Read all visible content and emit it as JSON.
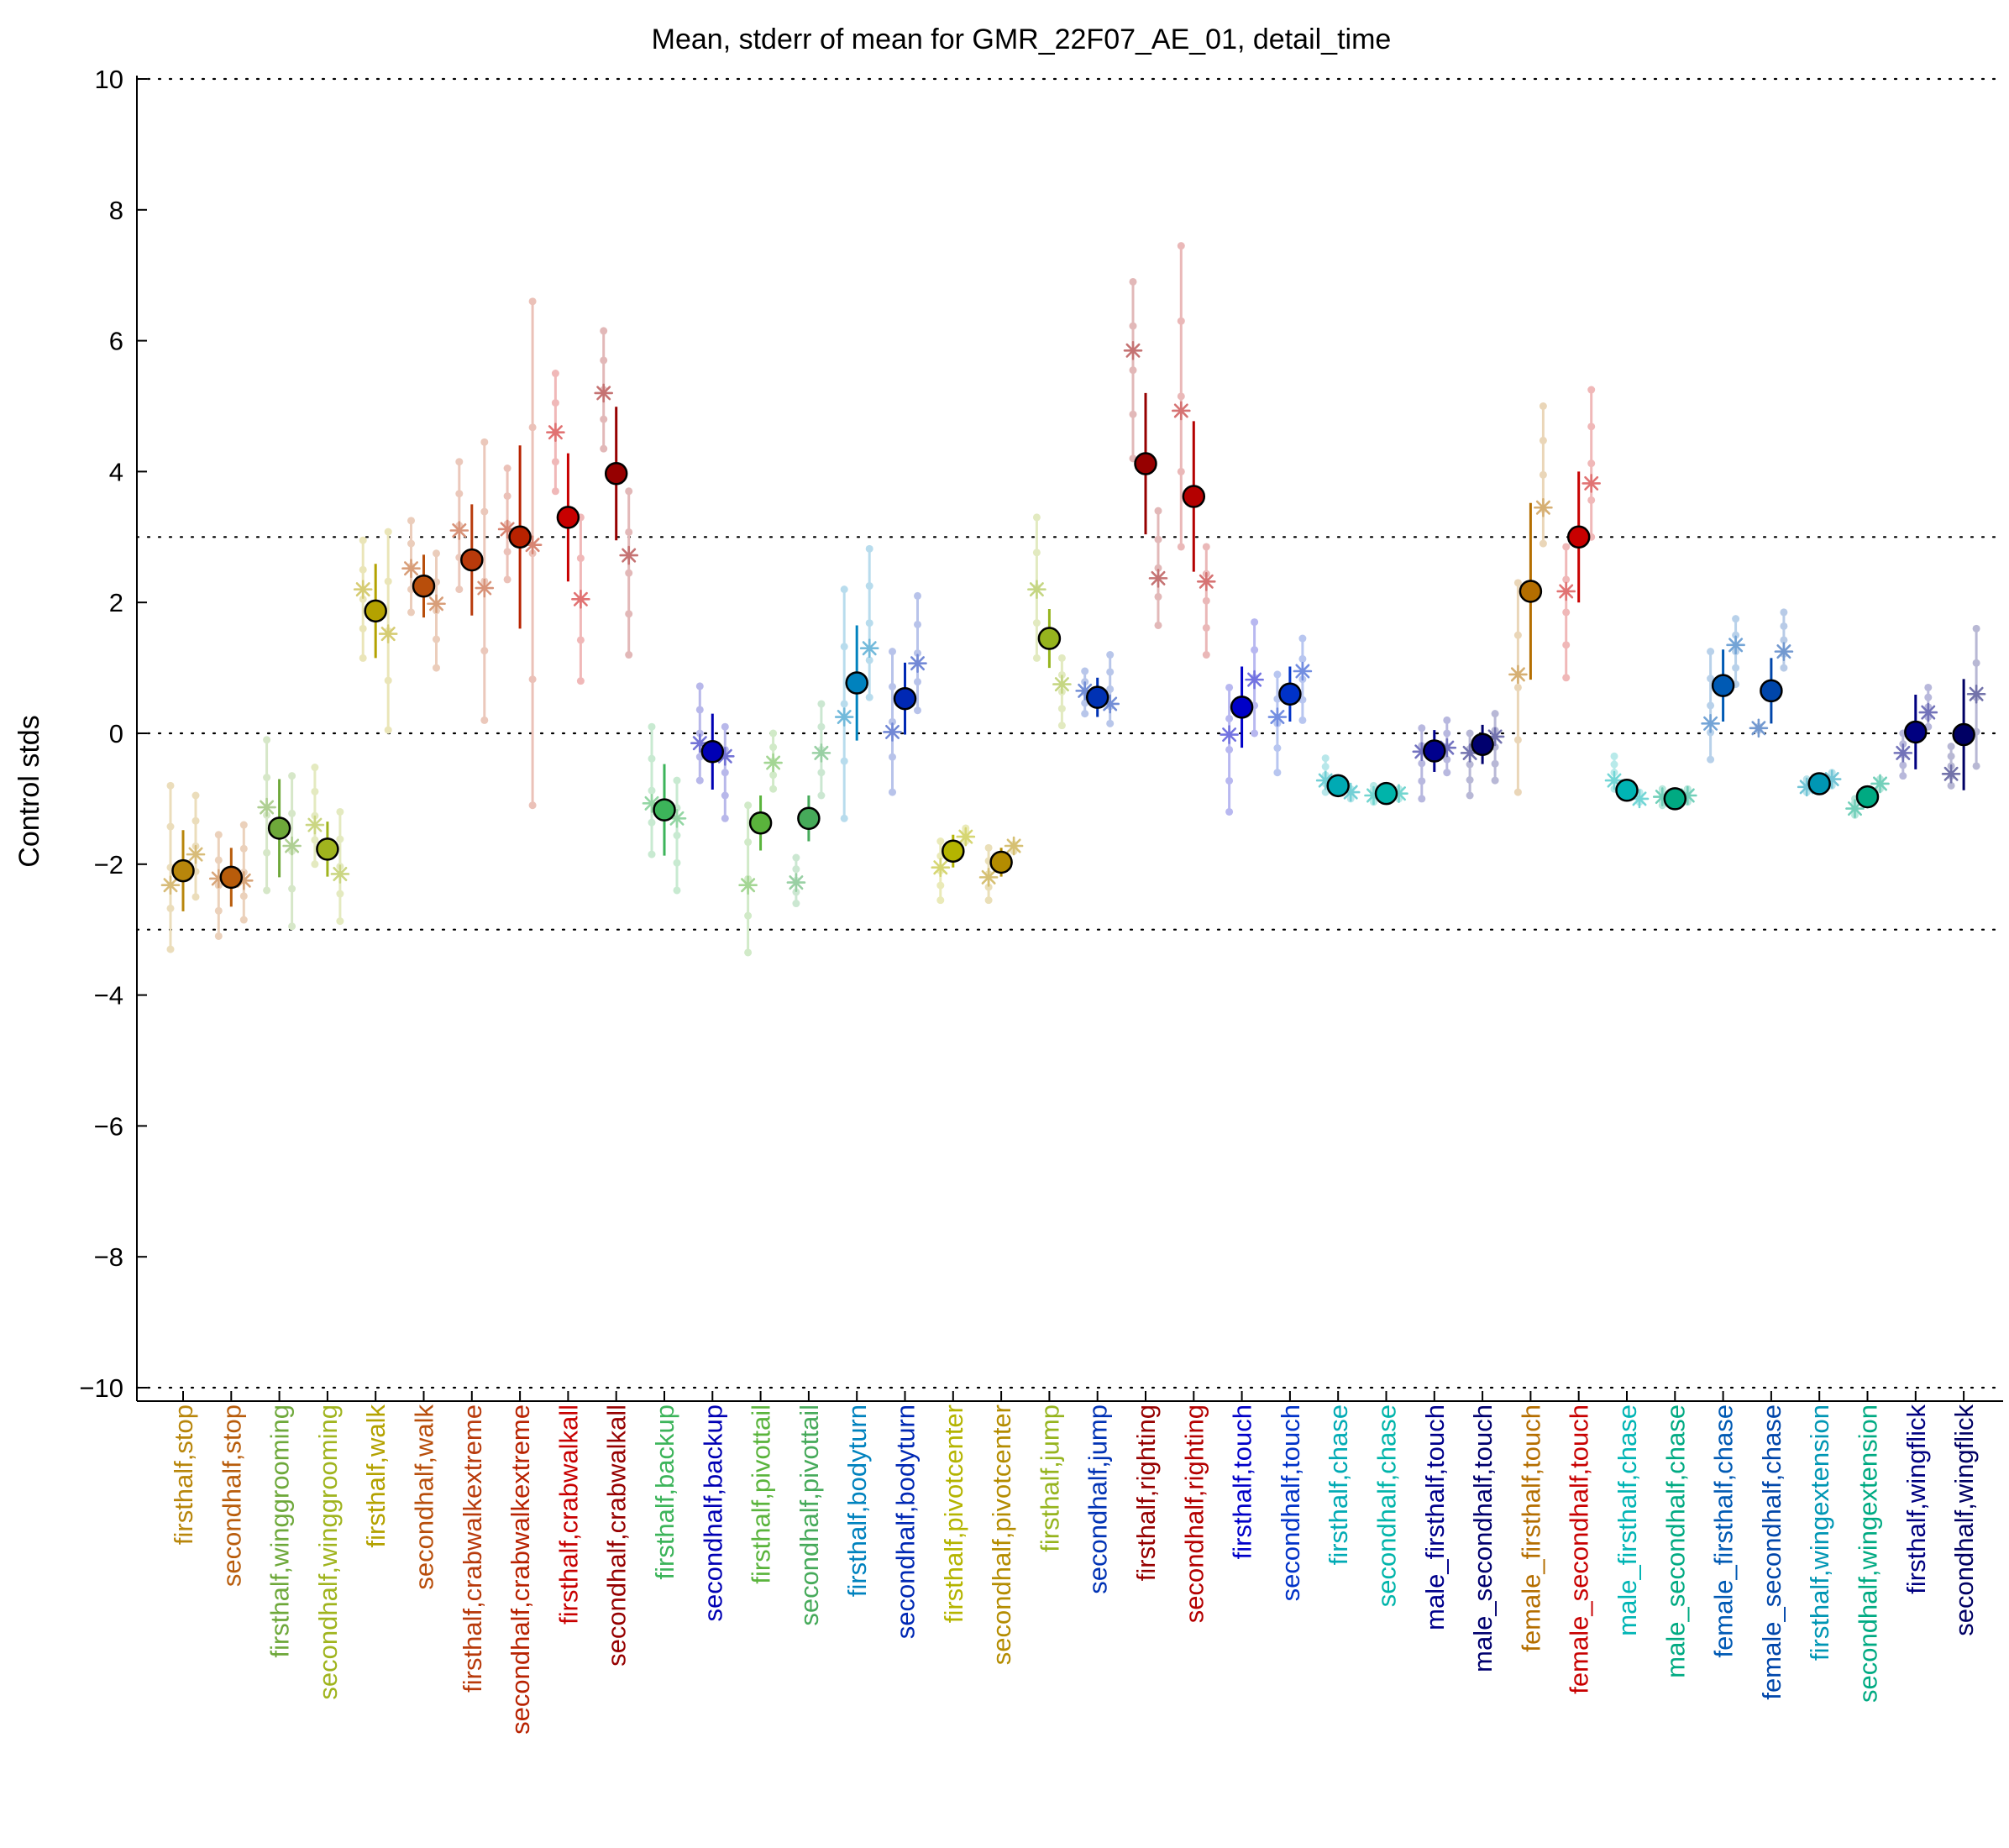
{
  "chart_data": {
    "type": "scatter",
    "title": "Mean, stderr of mean for GMR_22F07_AE_01, detail_time",
    "xlabel": "",
    "ylabel": "Control stds",
    "ylim": [
      -10,
      10
    ],
    "yticks": [
      "10",
      "8",
      "6",
      "4",
      "2",
      "0",
      "−2",
      "−4",
      "−6",
      "−8",
      "−10"
    ],
    "reference_lines": [
      10,
      3,
      0,
      -3,
      -10
    ],
    "grid": false,
    "legend": "none",
    "categories": [
      {
        "label": "firsthalf,stop",
        "color": "#b8860b",
        "mean": -2.1,
        "err": 0.62,
        "markers": [
          -2.32,
          -1.85
        ],
        "dots": [
          [
            -0.8,
            -3.3
          ],
          [
            -0.95,
            -2.5
          ]
        ]
      },
      {
        "label": "secondhalf,stop",
        "color": "#b85c0b",
        "mean": -2.2,
        "err": 0.45,
        "markers": [
          -2.22,
          -2.25
        ],
        "dots": [
          [
            -1.55,
            -3.1
          ],
          [
            -1.4,
            -2.85
          ]
        ]
      },
      {
        "label": "firsthalf,winggrooming",
        "color": "#6ea83a",
        "mean": -1.45,
        "err": 0.75,
        "markers": [
          -1.13,
          -1.72
        ],
        "dots": [
          [
            -0.1,
            -2.4
          ],
          [
            -0.65,
            -2.95
          ]
        ]
      },
      {
        "label": "secondhalf,winggrooming",
        "color": "#a0b41e",
        "mean": -1.77,
        "err": 0.42,
        "markers": [
          -1.4,
          -2.15
        ],
        "dots": [
          [
            -0.52,
            -2.0
          ],
          [
            -1.2,
            -2.87
          ]
        ]
      },
      {
        "label": "firsthalf,walk",
        "color": "#b4a200",
        "mean": 1.87,
        "err": 0.72,
        "markers": [
          2.2,
          1.52
        ],
        "dots": [
          [
            2.95,
            1.15
          ],
          [
            3.08,
            0.05
          ]
        ]
      },
      {
        "label": "secondhalf,walk",
        "color": "#b84e0b",
        "mean": 2.25,
        "err": 0.48,
        "markers": [
          2.52,
          1.98
        ],
        "dots": [
          [
            3.25,
            1.85
          ],
          [
            2.75,
            1.0
          ]
        ]
      },
      {
        "label": "firsthalf,crabwalkextreme",
        "color": "#b83a0b",
        "mean": 2.65,
        "err": 0.85,
        "markers": [
          3.1,
          2.22
        ],
        "dots": [
          [
            4.15,
            2.2
          ],
          [
            4.45,
            0.2
          ]
        ]
      },
      {
        "label": "secondhalf,crabwalkextreme",
        "color": "#b82200",
        "mean": 3.0,
        "err": 1.4,
        "markers": [
          3.12,
          2.88
        ],
        "dots": [
          [
            4.05,
            2.35
          ],
          [
            6.6,
            -1.1
          ]
        ]
      },
      {
        "label": "firsthalf,crabwalkall",
        "color": "#c80000",
        "mean": 3.3,
        "err": 0.98,
        "markers": [
          4.6,
          2.05
        ],
        "dots": [
          [
            5.5,
            3.7
          ],
          [
            3.3,
            0.8
          ]
        ]
      },
      {
        "label": "secondhalf,crabwalkall",
        "color": "#960000",
        "mean": 3.97,
        "err": 1.02,
        "markers": [
          5.2,
          2.72
        ],
        "dots": [
          [
            6.15,
            4.35
          ],
          [
            3.7,
            1.2
          ]
        ]
      },
      {
        "label": "firsthalf,backup",
        "color": "#3cb45a",
        "mean": -1.17,
        "err": 0.7,
        "markers": [
          -1.07,
          -1.3
        ],
        "dots": [
          [
            0.1,
            -1.85
          ],
          [
            -0.72,
            -2.4
          ]
        ]
      },
      {
        "label": "secondhalf,backup",
        "color": "#0000b4",
        "mean": -0.28,
        "err": 0.58,
        "markers": [
          -0.15,
          -0.35
        ],
        "dots": [
          [
            0.72,
            -0.72
          ],
          [
            0.1,
            -1.3
          ]
        ]
      },
      {
        "label": "firsthalf,pivottail",
        "color": "#5ab43c",
        "mean": -1.37,
        "err": 0.42,
        "markers": [
          -2.32,
          -0.45
        ],
        "dots": [
          [
            -1.1,
            -3.35
          ],
          [
            0.0,
            -0.85
          ]
        ]
      },
      {
        "label": "secondhalf,pivottail",
        "color": "#46aa5a",
        "mean": -1.3,
        "err": 0.35,
        "markers": [
          -2.28,
          -0.3
        ],
        "dots": [
          [
            -1.9,
            -2.6
          ],
          [
            0.45,
            -0.95
          ]
        ]
      },
      {
        "label": "firsthalf,bodyturn",
        "color": "#0082be",
        "mean": 0.77,
        "err": 0.88,
        "markers": [
          0.25,
          1.3
        ],
        "dots": [
          [
            2.2,
            -1.3
          ],
          [
            2.82,
            0.55
          ]
        ]
      },
      {
        "label": "secondhalf,bodyturn",
        "color": "#0028b4",
        "mean": 0.53,
        "err": 0.55,
        "markers": [
          0.02,
          1.07
        ],
        "dots": [
          [
            1.25,
            -0.9
          ],
          [
            2.1,
            0.35
          ]
        ]
      },
      {
        "label": "firsthalf,pivotcenter",
        "color": "#b4b400",
        "mean": -1.8,
        "err": 0.25,
        "markers": [
          -2.05,
          -1.58
        ],
        "dots": [
          [
            -1.65,
            -2.55
          ],
          [
            -1.45,
            -1.65
          ]
        ]
      },
      {
        "label": "secondhalf,pivotcenter",
        "color": "#b48c00",
        "mean": -1.97,
        "err": 0.22,
        "markers": [
          -2.2,
          -1.72
        ],
        "dots": [
          [
            -1.75,
            -2.55
          ],
          [
            -1.7,
            -1.8
          ]
        ]
      },
      {
        "label": "firsthalf,jump",
        "color": "#96b41e",
        "mean": 1.45,
        "err": 0.45,
        "markers": [
          2.2,
          0.75
        ],
        "dots": [
          [
            3.3,
            1.15
          ],
          [
            1.15,
            0.12
          ]
        ]
      },
      {
        "label": "secondhalf,jump",
        "color": "#0032b4",
        "mean": 0.55,
        "err": 0.3,
        "markers": [
          0.65,
          0.45
        ],
        "dots": [
          [
            0.95,
            0.3
          ],
          [
            1.2,
            0.15
          ]
        ]
      },
      {
        "label": "firsthalf,righting",
        "color": "#960000",
        "mean": 4.12,
        "err": 1.08,
        "markers": [
          5.85,
          2.37
        ],
        "dots": [
          [
            6.9,
            4.2
          ],
          [
            3.4,
            1.65
          ]
        ]
      },
      {
        "label": "secondhalf,righting",
        "color": "#b40000",
        "mean": 3.62,
        "err": 1.15,
        "markers": [
          4.93,
          2.32
        ],
        "dots": [
          [
            7.45,
            2.85
          ],
          [
            2.85,
            1.2
          ]
        ]
      },
      {
        "label": "firsthalf,touch",
        "color": "#0000c8",
        "mean": 0.4,
        "err": 0.62,
        "markers": [
          -0.02,
          0.82
        ],
        "dots": [
          [
            0.7,
            -1.2
          ],
          [
            1.7,
            0.0
          ]
        ]
      },
      {
        "label": "secondhalf,touch",
        "color": "#0032c8",
        "mean": 0.6,
        "err": 0.42,
        "markers": [
          0.25,
          0.95
        ],
        "dots": [
          [
            0.9,
            -0.6
          ],
          [
            1.45,
            0.2
          ]
        ]
      },
      {
        "label": "firsthalf,chase",
        "color": "#00aab4",
        "mean": -0.8,
        "err": 0.08,
        "markers": [
          -0.72,
          -0.9
        ],
        "dots": [
          [
            -0.38,
            -0.9
          ],
          [
            -0.85,
            -1.0
          ]
        ]
      },
      {
        "label": "secondhalf,chase",
        "color": "#00b4aa",
        "mean": -0.92,
        "err": 0.08,
        "markers": [
          -0.95,
          -0.92
        ],
        "dots": [
          [
            -0.8,
            -1.05
          ],
          [
            -0.85,
            -1.0
          ]
        ]
      },
      {
        "label": "male_firsthalf,touch",
        "color": "#00008c",
        "mean": -0.27,
        "err": 0.32,
        "markers": [
          -0.28,
          -0.22
        ],
        "dots": [
          [
            0.08,
            -1.0
          ],
          [
            0.2,
            -0.6
          ]
        ]
      },
      {
        "label": "male_secondhalf,touch",
        "color": "#00006e",
        "mean": -0.17,
        "err": 0.3,
        "markers": [
          -0.3,
          -0.05
        ],
        "dots": [
          [
            0.0,
            -0.95
          ],
          [
            0.3,
            -0.72
          ]
        ]
      },
      {
        "label": "female_firsthalf,touch",
        "color": "#b46e00",
        "mean": 2.17,
        "err": 1.35,
        "markers": [
          0.9,
          3.45
        ],
        "dots": [
          [
            2.3,
            -0.9
          ],
          [
            5.0,
            2.9
          ]
        ]
      },
      {
        "label": "female_secondhalf,touch",
        "color": "#c80000",
        "mean": 3.0,
        "err": 1.0,
        "markers": [
          2.17,
          3.82
        ],
        "dots": [
          [
            2.85,
            0.85
          ],
          [
            5.25,
            3.0
          ]
        ]
      },
      {
        "label": "male_firsthalf,chase",
        "color": "#00b4b4",
        "mean": -0.87,
        "err": 0.08,
        "markers": [
          -0.72,
          -1.0
        ],
        "dots": [
          [
            -0.35,
            -0.85
          ],
          [
            -0.9,
            -1.05
          ]
        ]
      },
      {
        "label": "male_secondhalf,chase",
        "color": "#00aa82",
        "mean": -1.0,
        "err": 0.07,
        "markers": [
          -0.97,
          -0.95
        ],
        "dots": [
          [
            -0.85,
            -1.1
          ],
          [
            -0.85,
            -1.05
          ]
        ]
      },
      {
        "label": "female_firsthalf,chase",
        "color": "#005ab4",
        "mean": 0.73,
        "err": 0.55,
        "markers": [
          0.15,
          1.35
        ],
        "dots": [
          [
            1.25,
            -0.4
          ],
          [
            1.75,
            0.75
          ]
        ]
      },
      {
        "label": "female_secondhalf,chase",
        "color": "#0046aa",
        "mean": 0.65,
        "err": 0.5,
        "markers": [
          0.08,
          1.25
        ],
        "dots": [
          [
            0.1,
            0.05
          ],
          [
            1.85,
            1.0
          ]
        ]
      },
      {
        "label": "firsthalf,wingextension",
        "color": "#0096b4",
        "mean": -0.77,
        "err": 0.08,
        "markers": [
          -0.82,
          -0.7
        ],
        "dots": [
          [
            -0.7,
            -0.9
          ],
          [
            -0.6,
            -0.8
          ]
        ]
      },
      {
        "label": "secondhalf,wingextension",
        "color": "#00aa82",
        "mean": -0.97,
        "err": 0.08,
        "markers": [
          -1.15,
          -0.77
        ],
        "dots": [
          [
            -1.0,
            -1.25
          ],
          [
            -0.7,
            -0.85
          ]
        ]
      },
      {
        "label": "firsthalf,wingflick",
        "color": "#000080",
        "mean": 0.02,
        "err": 0.57,
        "markers": [
          -0.3,
          0.32
        ],
        "dots": [
          [
            0.0,
            -0.65
          ],
          [
            0.7,
            0.1
          ]
        ]
      },
      {
        "label": "secondhalf,wingflick",
        "color": "#000064",
        "mean": -0.02,
        "err": 0.85,
        "markers": [
          -0.62,
          0.6
        ],
        "dots": [
          [
            -0.2,
            -0.8
          ],
          [
            1.6,
            -0.5
          ]
        ]
      }
    ]
  }
}
